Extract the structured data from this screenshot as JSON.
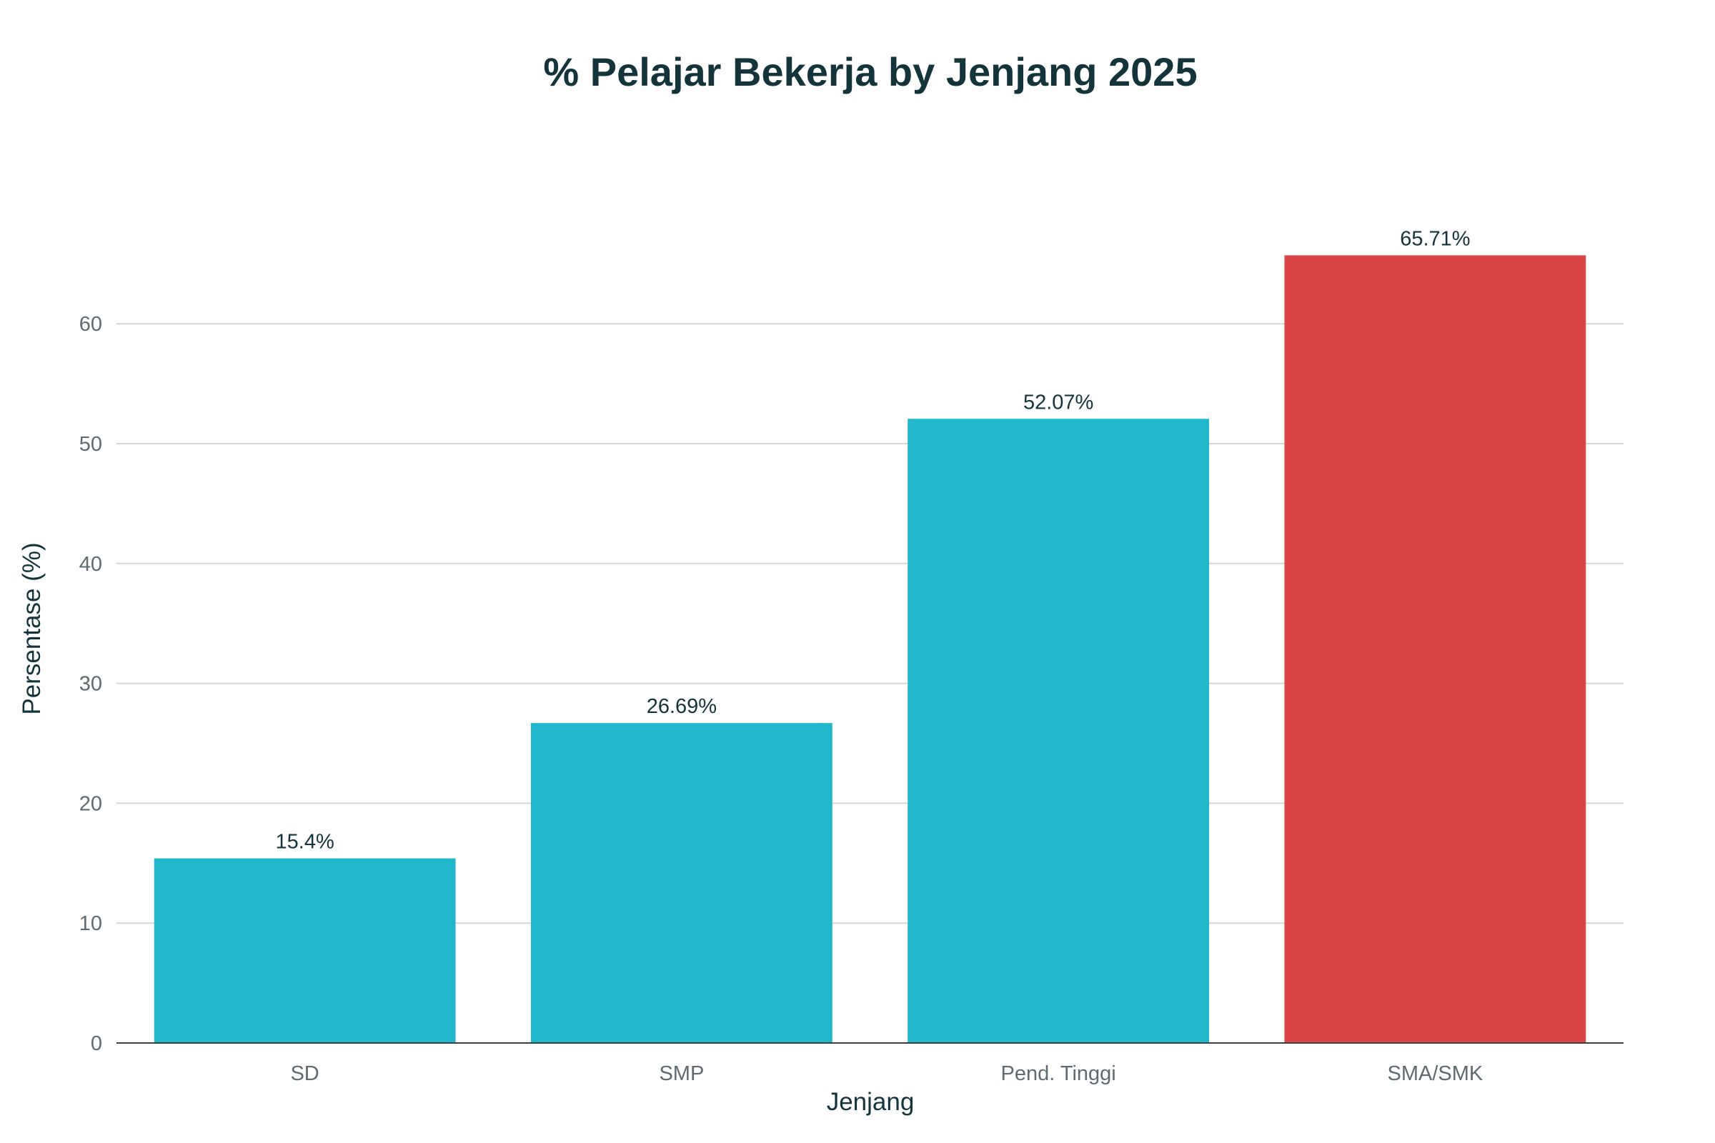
{
  "chart_data": {
    "type": "bar",
    "title": "% Pelajar Bekerja by Jenjang 2025",
    "xlabel": "Jenjang",
    "ylabel": "Persentase (%)",
    "categories": [
      "SD",
      "SMP",
      "Pend. Tinggi",
      "SMA/SMK"
    ],
    "values": [
      15.4,
      26.69,
      52.07,
      65.71
    ],
    "data_labels": [
      "15.4%",
      "26.69%",
      "52.07%",
      "65.71%"
    ],
    "colors": [
      "#21B7CB",
      "#21B7CB",
      "#21B7CB",
      "#DB4546"
    ],
    "ylim": [
      0,
      70
    ],
    "yticks": [
      0,
      10,
      20,
      30,
      40,
      50,
      60
    ],
    "grid": true,
    "legend": "none"
  }
}
